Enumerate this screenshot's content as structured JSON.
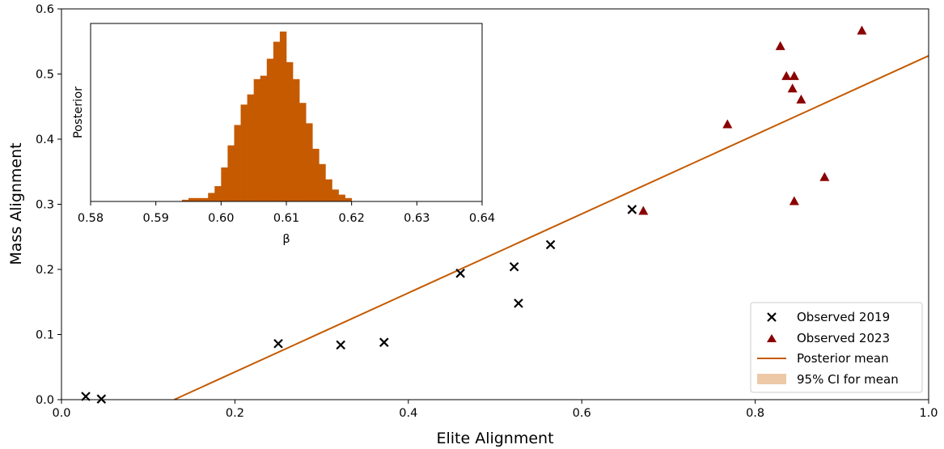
{
  "chart_data": [
    {
      "type": "scatter",
      "xlabel": "Elite Alignment",
      "ylabel": "Mass Alignment",
      "xlim": [
        0.0,
        1.0
      ],
      "ylim": [
        0.0,
        0.6
      ],
      "xticks": [
        "0.0",
        "0.2",
        "0.4",
        "0.6",
        "0.8",
        "1.0"
      ],
      "yticks": [
        "0.0",
        "0.1",
        "0.2",
        "0.3",
        "0.4",
        "0.5",
        "0.6"
      ],
      "grid": false,
      "legend_position": "bottom-right",
      "series": [
        {
          "name": "Observed 2019",
          "marker": "x",
          "color": "#000000",
          "points": [
            [
              0.028,
              0.005
            ],
            [
              0.046,
              0.001
            ],
            [
              0.25,
              0.086
            ],
            [
              0.322,
              0.084
            ],
            [
              0.372,
              0.088
            ],
            [
              0.46,
              0.194
            ],
            [
              0.522,
              0.204
            ],
            [
              0.527,
              0.148
            ],
            [
              0.564,
              0.238
            ],
            [
              0.658,
              0.292
            ]
          ]
        },
        {
          "name": "Observed 2023",
          "marker": "triangle",
          "color": "#8b0000",
          "points": [
            [
              0.671,
              0.29
            ],
            [
              0.768,
              0.423
            ],
            [
              0.829,
              0.543
            ],
            [
              0.836,
              0.497
            ],
            [
              0.843,
              0.478
            ],
            [
              0.845,
              0.497
            ],
            [
              0.845,
              0.305
            ],
            [
              0.853,
              0.461
            ],
            [
              0.88,
              0.342
            ],
            [
              0.923,
              0.567
            ]
          ]
        },
        {
          "name": "Posterior mean",
          "type": "line",
          "color": "#c55a00",
          "points": [
            [
              0.13,
              0.0
            ],
            [
              1.0,
              0.528
            ]
          ]
        },
        {
          "name": "95% CI for mean",
          "type": "band",
          "color": "#edc9a8"
        }
      ]
    },
    {
      "type": "bar",
      "subtype": "histogram",
      "xlabel": "β",
      "ylabel": "Posterior",
      "xlim": [
        0.58,
        0.64
      ],
      "xticks": [
        "0.58",
        "0.59",
        "0.60",
        "0.61",
        "0.62",
        "0.63",
        "0.64"
      ],
      "color": "#c55a00",
      "bin_width": 0.001,
      "bin_start": 0.594,
      "values": [
        0.01,
        0.02,
        0.02,
        0.02,
        0.05,
        0.09,
        0.2,
        0.33,
        0.45,
        0.57,
        0.63,
        0.72,
        0.74,
        0.84,
        0.94,
        1.0,
        0.82,
        0.72,
        0.58,
        0.46,
        0.31,
        0.22,
        0.13,
        0.07,
        0.04,
        0.02
      ]
    }
  ]
}
